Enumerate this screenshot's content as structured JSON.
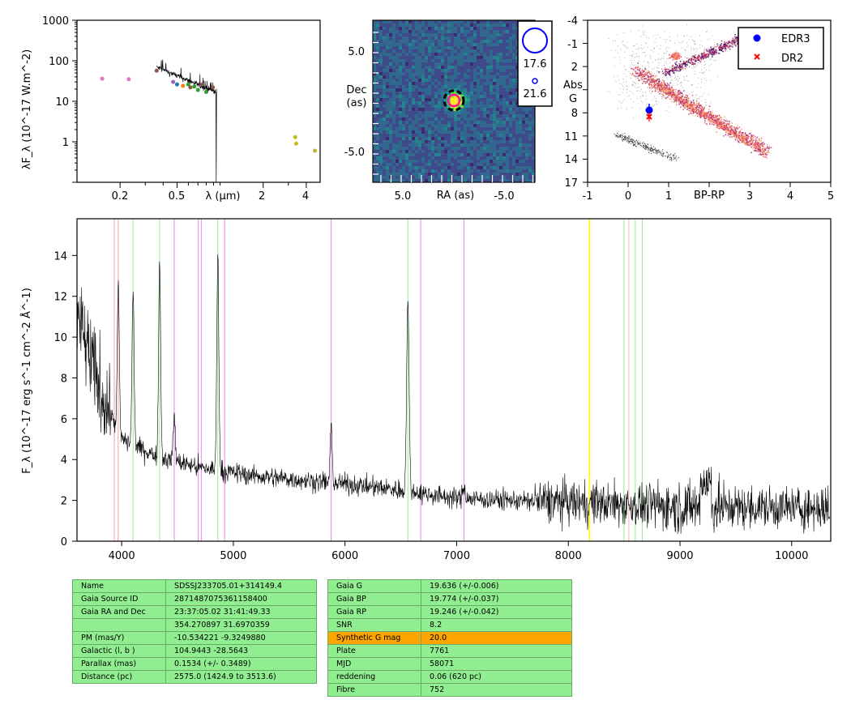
{
  "sed": {
    "ylabel": "λF_λ (10^-17 W.m^-2)",
    "xlabel": "λ (μm)",
    "yticks": [
      "1000",
      "100",
      "10",
      "1"
    ],
    "xticks": [
      "0.2",
      "0.5",
      "2",
      "4"
    ],
    "points": [
      {
        "x": 0.15,
        "y": 36,
        "color": "#e377c2"
      },
      {
        "x": 0.23,
        "y": 35,
        "color": "#e377c2"
      },
      {
        "x": 0.36,
        "y": 57,
        "color": "#8c564b"
      },
      {
        "x": 0.47,
        "y": 30,
        "color": "#9467bd"
      },
      {
        "x": 0.5,
        "y": 26,
        "color": "#1f77b4"
      },
      {
        "x": 0.55,
        "y": 24,
        "color": "#ff7f0e"
      },
      {
        "x": 0.6,
        "y": 26,
        "color": "#2ca02c"
      },
      {
        "x": 0.62,
        "y": 22,
        "color": "#8c564b"
      },
      {
        "x": 0.66,
        "y": 23,
        "color": "#2ca02c"
      },
      {
        "x": 0.7,
        "y": 19,
        "color": "#2ca02c"
      },
      {
        "x": 0.75,
        "y": 26,
        "color": "#8c564b"
      },
      {
        "x": 0.8,
        "y": 17,
        "color": "#2ca02c"
      },
      {
        "x": 0.89,
        "y": 22,
        "color": "#8c564b"
      },
      {
        "x": 3.35,
        "y": 1.3,
        "color": "#bcbd22"
      },
      {
        "x": 3.4,
        "y": 0.9,
        "color": "#bcbd22"
      },
      {
        "x": 4.6,
        "y": 0.6,
        "color": "#bcbd22"
      }
    ]
  },
  "image": {
    "ylabel_line1": "Dec",
    "ylabel_line2": "(as)",
    "xlabel": "RA (as)",
    "yticks": [
      "5.0",
      "-5.0"
    ],
    "xticks": [
      "5.0",
      "-5.0"
    ],
    "legend": [
      "17.6",
      "21.6"
    ]
  },
  "hrd": {
    "ylabel_line1": "Abs",
    "ylabel_line2": "G",
    "xlabel": "BP-RP",
    "yticks": [
      "-4",
      "-1",
      "2",
      "5",
      "8",
      "11",
      "14",
      "17"
    ],
    "xticks": [
      "-1",
      "0",
      "1",
      "3",
      "4",
      "5"
    ],
    "legend": [
      {
        "label": "EDR3",
        "color": "#0000ff",
        "marker": "circle"
      },
      {
        "label": "DR2",
        "color": "#ff0000",
        "marker": "x"
      }
    ],
    "edr3": {
      "x": 0.52,
      "y": 7.8
    },
    "dr2": {
      "x": 0.52,
      "y": 8.5
    }
  },
  "spectrum": {
    "ylabel": "F_λ (10^-17 erg s^-1 cm^-2 Å^-1)",
    "yticks": [
      "0",
      "2",
      "4",
      "6",
      "8",
      "10",
      "12",
      "14"
    ],
    "xticks": [
      "4000",
      "5000",
      "6000",
      "7000",
      "8000",
      "9000",
      "10000"
    ],
    "xlim": [
      3600,
      10350
    ],
    "ylim": [
      0,
      15.8
    ],
    "vlines": [
      {
        "x": 3934,
        "color": "#ff9999"
      },
      {
        "x": 3969,
        "color": "#ff9999"
      },
      {
        "x": 4102,
        "color": "#90ee90"
      },
      {
        "x": 4340,
        "color": "#90ee90"
      },
      {
        "x": 4471,
        "color": "#ee82ee"
      },
      {
        "x": 4686,
        "color": "#ee82ee"
      },
      {
        "x": 4713,
        "color": "#ee82ee"
      },
      {
        "x": 4861,
        "color": "#90ee90"
      },
      {
        "x": 4922,
        "color": "#ee82ee"
      },
      {
        "x": 5876,
        "color": "#ee82ee"
      },
      {
        "x": 6563,
        "color": "#90ee90"
      },
      {
        "x": 6678,
        "color": "#ee82ee"
      },
      {
        "x": 7065,
        "color": "#ee82ee"
      },
      {
        "x": 8190,
        "color": "#ffff00"
      },
      {
        "x": 8498,
        "color": "#90ee90"
      },
      {
        "x": 8542,
        "color": "#ffb0b0"
      },
      {
        "x": 8600,
        "color": "#90ee90"
      },
      {
        "x": 8662,
        "color": "#90ee90"
      }
    ]
  },
  "table1": [
    {
      "key": "Name",
      "value": "SDSSJ233705.01+314149.4"
    },
    {
      "key": "Gaia Source ID",
      "value": "2871487075361158400"
    },
    {
      "key": "Gaia RA and Dec",
      "value": "23:37:05.02    31:41:49.33"
    },
    {
      "key": "",
      "value": "354.270897    31.6970359"
    },
    {
      "key": "PM (mas/Y)",
      "value": "-10.534221    -9.3249880"
    },
    {
      "key": "Galactic (l, b )",
      "value": "104.9443    -28.5643"
    },
    {
      "key": "Parallax (mas)",
      "value": "0.1534 (+/- 0.3489)"
    },
    {
      "key": "Distance (pc)",
      "value": "2575.0 (1424.9 to 3513.6)"
    }
  ],
  "table2": [
    {
      "key": "Gaia G",
      "value": "19.636 (+/-0.006)"
    },
    {
      "key": "Gaia BP",
      "value": "19.774 (+/-0.037)"
    },
    {
      "key": "Gaia RP",
      "value": "19.246 (+/-0.042)"
    },
    {
      "key": "SNR",
      "value": "8.2"
    },
    {
      "key": "Synthetic G mag",
      "value": "20.0",
      "highlight": "#ffa500"
    },
    {
      "key": "Plate",
      "value": "7761"
    },
    {
      "key": "MJD",
      "value": "58071"
    },
    {
      "key": "reddening",
      "value": "0.06 (620 pc)"
    },
    {
      "key": "Fibre",
      "value": "752"
    }
  ],
  "chart_data": [
    {
      "type": "scatter",
      "name": "SED",
      "xscale": "log",
      "yscale": "log",
      "xlabel": "λ (μm)",
      "ylabel": "λF_λ (10^-17 W.m^-2)",
      "xlim": [
        0.1,
        5
      ],
      "ylim": [
        0.1,
        1000
      ],
      "x": [
        0.15,
        0.23,
        0.36,
        0.47,
        0.5,
        0.55,
        0.6,
        0.62,
        0.66,
        0.7,
        0.75,
        0.8,
        0.89,
        3.35,
        3.4,
        4.6
      ],
      "y": [
        36,
        35,
        57,
        30,
        26,
        24,
        26,
        22,
        23,
        19,
        26,
        17,
        22,
        1.3,
        0.9,
        0.6
      ]
    },
    {
      "type": "scatter",
      "name": "HR diagram",
      "xlabel": "BP-RP",
      "ylabel": "Abs G",
      "xlim": [
        -1,
        5
      ],
      "ylim": [
        17,
        -4
      ],
      "series": [
        {
          "name": "EDR3",
          "x": [
            0.52
          ],
          "y": [
            7.8
          ]
        },
        {
          "name": "DR2",
          "x": [
            0.52
          ],
          "y": [
            8.5
          ]
        }
      ]
    },
    {
      "type": "line",
      "name": "Spectrum",
      "xlabel": "",
      "ylabel": "F_λ (10^-17 erg s^-1 cm^-2 Å^-1)",
      "xlim": [
        3600,
        10350
      ],
      "ylim": [
        0,
        15.8
      ],
      "continuum": {
        "x": [
          3600,
          3800,
          4000,
          4300,
          4700,
          5200,
          6000,
          6500,
          7000,
          8000,
          9000,
          10300
        ],
        "y": [
          11,
          7.5,
          5.0,
          4.2,
          3.6,
          3.2,
          2.8,
          2.5,
          2.1,
          1.9,
          1.7,
          1.6
        ]
      },
      "emission_lines": [
        {
          "x": 3970,
          "peak": 12.5
        },
        {
          "x": 4102,
          "peak": 12.3
        },
        {
          "x": 4340,
          "peak": 13.8
        },
        {
          "x": 4471,
          "peak": 6.2
        },
        {
          "x": 4861,
          "peak": 14.2
        },
        {
          "x": 5876,
          "peak": 5.6
        },
        {
          "x": 6563,
          "peak": 11.7
        },
        {
          "x": 7065,
          "peak": 2.7
        }
      ]
    }
  ]
}
